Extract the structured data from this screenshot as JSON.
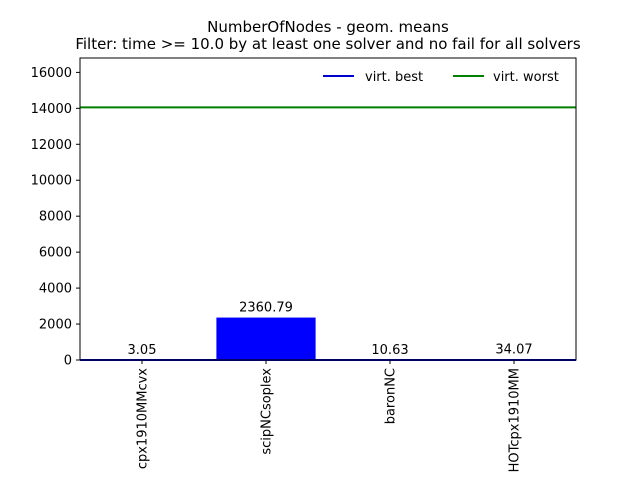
{
  "chart_data": {
    "type": "bar",
    "title": "NumberOfNodes - geom. means",
    "subtitle": "Filter: time >= 10.0 by at least one solver and no fail for all solvers",
    "categories": [
      "cpx1910MMcvx",
      "scipNCsoplex",
      "baronNC",
      "HOTcpx1910MM"
    ],
    "values": [
      3.05,
      2360.79,
      10.63,
      34.07
    ],
    "data_labels": [
      "3.05",
      "2360.79",
      "10.63",
      "34.07"
    ],
    "bar_color": "#0000ff",
    "ylim": [
      0,
      16800
    ],
    "yticks": [
      0,
      2000,
      4000,
      6000,
      8000,
      10000,
      12000,
      14000,
      16000
    ],
    "reference_lines": [
      {
        "name": "virt. best",
        "value": 3.05,
        "color": "#0000cc"
      },
      {
        "name": "virt. worst",
        "value": 14050,
        "color": "#007f00"
      }
    ],
    "legend_position": "top-right",
    "grid": false,
    "xlabel": "",
    "ylabel": ""
  }
}
